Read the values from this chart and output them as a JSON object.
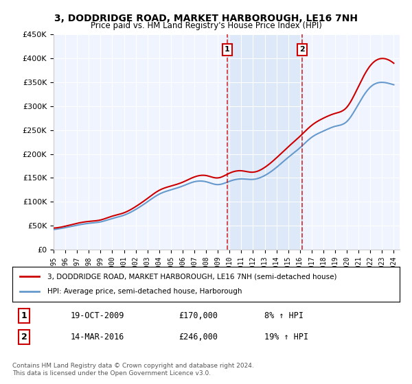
{
  "title": "3, DODDRIDGE ROAD, MARKET HARBOROUGH, LE16 7NH",
  "subtitle": "Price paid vs. HM Land Registry's House Price Index (HPI)",
  "legend_line1": "3, DODDRIDGE ROAD, MARKET HARBOROUGH, LE16 7NH (semi-detached house)",
  "legend_line2": "HPI: Average price, semi-detached house, Harborough",
  "sale1_date": "19-OCT-2009",
  "sale1_price": "£170,000",
  "sale1_hpi": "8% ↑ HPI",
  "sale1_year": 2009.8,
  "sale2_date": "14-MAR-2016",
  "sale2_price": "£246,000",
  "sale2_hpi": "19% ↑ HPI",
  "sale2_year": 2016.2,
  "footnote": "Contains HM Land Registry data © Crown copyright and database right 2024.\nThis data is licensed under the Open Government Licence v3.0.",
  "ylim": [
    0,
    450000
  ],
  "yticks": [
    0,
    50000,
    100000,
    150000,
    200000,
    250000,
    300000,
    350000,
    400000,
    450000
  ],
  "background_color": "#ffffff",
  "plot_bg_color": "#f0f4ff",
  "grid_color": "#ffffff",
  "red_color": "#cc0000",
  "blue_color": "#6699cc",
  "highlight_color": "#dde8f8",
  "years": [
    1995,
    1996,
    1997,
    1998,
    1999,
    2000,
    2001,
    2002,
    2003,
    2004,
    2005,
    2006,
    2007,
    2008,
    2009,
    2010,
    2011,
    2012,
    2013,
    2014,
    2015,
    2016,
    2017,
    2018,
    2019,
    2020,
    2021,
    2022,
    2023,
    2024
  ],
  "hpi_values": [
    42000,
    46000,
    51000,
    55000,
    58000,
    65000,
    72000,
    84000,
    100000,
    116000,
    125000,
    133000,
    142000,
    142000,
    136000,
    143000,
    148000,
    147000,
    155000,
    172000,
    193000,
    213000,
    235000,
    248000,
    258000,
    268000,
    305000,
    340000,
    350000,
    345000
  ],
  "price_values": [
    45000,
    49000,
    55000,
    59000,
    62000,
    70000,
    77000,
    90000,
    107000,
    124000,
    133000,
    141000,
    152000,
    155000,
    150000,
    160000,
    165000,
    162000,
    172000,
    192000,
    215000,
    237000,
    260000,
    275000,
    285000,
    298000,
    342000,
    385000,
    400000,
    390000
  ]
}
